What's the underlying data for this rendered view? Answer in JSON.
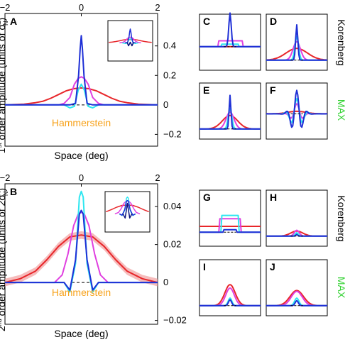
{
  "colors": {
    "red": "#e8262a",
    "magenta": "#e040e0",
    "cyan": "#2ee6f0",
    "blue": "#1e2fd6",
    "navy": "#0a1480",
    "black": "#000000",
    "orange": "#f7a21b",
    "green": "#2fd12f",
    "redband": "#f2a0a0"
  },
  "labels": {
    "hammerstein": "Hammerstein",
    "korenberg": "Korenberg",
    "max": "MAX",
    "space_label": "Space (deg)"
  },
  "chart_data": [
    {
      "panel": "A",
      "type": "line",
      "ylabel_parts": [
        "1",
        "st",
        " order amplitude (units of σ",
        "2",
        "N",
        ")"
      ],
      "xlabel": "Space (deg)",
      "xlim": [
        -2,
        2
      ],
      "xticks": [
        "−2",
        "0",
        "2"
      ],
      "ylim": [
        -0.28,
        0.62
      ],
      "yticks": [
        "0.4",
        "0.2",
        "0",
        "−0.2"
      ],
      "ytick_values": [
        0.4,
        0.2,
        0,
        -0.2
      ],
      "annotation": "Hammerstein",
      "series": [
        {
          "color": "red",
          "points": [
            [
              -2,
              0.0
            ],
            [
              -1.5,
              0.005
            ],
            [
              -1.2,
              0.015
            ],
            [
              -1.0,
              0.025
            ],
            [
              -0.8,
              0.045
            ],
            [
              -0.6,
              0.07
            ],
            [
              -0.4,
              0.095
            ],
            [
              -0.2,
              0.11
            ],
            [
              0,
              0.115
            ],
            [
              0.2,
              0.11
            ],
            [
              0.4,
              0.095
            ],
            [
              0.6,
              0.07
            ],
            [
              0.8,
              0.045
            ],
            [
              1.0,
              0.025
            ],
            [
              1.2,
              0.015
            ],
            [
              1.5,
              0.005
            ],
            [
              2,
              0.0
            ]
          ]
        },
        {
          "color": "magenta",
          "points": [
            [
              -2,
              0.0
            ],
            [
              -0.6,
              0.0
            ],
            [
              -0.45,
              0.01
            ],
            [
              -0.3,
              0.05
            ],
            [
              -0.18,
              0.14
            ],
            [
              -0.08,
              0.18
            ],
            [
              0,
              0.19
            ],
            [
              0.08,
              0.18
            ],
            [
              0.18,
              0.14
            ],
            [
              0.3,
              0.05
            ],
            [
              0.45,
              0.01
            ],
            [
              0.6,
              0.0
            ],
            [
              2,
              0.0
            ]
          ]
        },
        {
          "color": "cyan",
          "points": [
            [
              -2,
              0.0
            ],
            [
              -0.45,
              0.0
            ],
            [
              -0.3,
              -0.02
            ],
            [
              -0.18,
              -0.01
            ],
            [
              -0.08,
              0.1
            ],
            [
              0,
              0.14
            ],
            [
              0.08,
              0.1
            ],
            [
              0.18,
              -0.01
            ],
            [
              0.3,
              -0.02
            ],
            [
              0.45,
              0.0
            ],
            [
              2,
              0.0
            ]
          ]
        },
        {
          "color": "blue",
          "points": [
            [
              -2,
              0.0
            ],
            [
              -0.3,
              0.0
            ],
            [
              -0.15,
              0.01
            ],
            [
              -0.07,
              0.2
            ],
            [
              -0.03,
              0.38
            ],
            [
              0,
              0.47
            ],
            [
              0.03,
              0.38
            ],
            [
              0.07,
              0.2
            ],
            [
              0.15,
              0.01
            ],
            [
              0.3,
              0.0
            ],
            [
              2,
              0.0
            ]
          ]
        }
      ]
    },
    {
      "panel": "B",
      "type": "line",
      "ylabel_parts": [
        "2",
        "nd",
        " order amplitude (units of 2σ",
        "4",
        "N",
        ")"
      ],
      "xlabel": "Space (deg)",
      "xlim": [
        -2,
        2
      ],
      "xticks": [
        "−2",
        "0",
        "2"
      ],
      "ylim": [
        -0.022,
        0.052
      ],
      "yticks": [
        "0.04",
        "0.02",
        "0",
        "−0.02"
      ],
      "ytick_values": [
        0.04,
        0.02,
        0,
        -0.02
      ],
      "annotation": "Hammerstein",
      "series": [
        {
          "color": "red",
          "points": [
            [
              -2,
              0.0
            ],
            [
              -1.6,
              0.002
            ],
            [
              -1.2,
              0.006
            ],
            [
              -0.9,
              0.012
            ],
            [
              -0.6,
              0.019
            ],
            [
              -0.3,
              0.024
            ],
            [
              0,
              0.025
            ],
            [
              0.3,
              0.024
            ],
            [
              0.6,
              0.019
            ],
            [
              0.9,
              0.012
            ],
            [
              1.2,
              0.006
            ],
            [
              1.6,
              0.002
            ],
            [
              2,
              0.0
            ]
          ]
        },
        {
          "color": "magenta",
          "points": [
            [
              -2,
              0.0
            ],
            [
              -0.7,
              0.0
            ],
            [
              -0.5,
              0.004
            ],
            [
              -0.35,
              0.015
            ],
            [
              -0.2,
              0.03
            ],
            [
              -0.08,
              0.036
            ],
            [
              0,
              0.037
            ],
            [
              0.08,
              0.036
            ],
            [
              0.2,
              0.03
            ],
            [
              0.35,
              0.015
            ],
            [
              0.5,
              0.004
            ],
            [
              0.7,
              0.0
            ],
            [
              2,
              0.0
            ]
          ]
        },
        {
          "color": "cyan",
          "points": [
            [
              -2,
              0.0
            ],
            [
              -0.45,
              0.0
            ],
            [
              -0.3,
              -0.005
            ],
            [
              -0.15,
              0.01
            ],
            [
              -0.05,
              0.045
            ],
            [
              0,
              0.048
            ],
            [
              0.05,
              0.045
            ],
            [
              0.15,
              0.01
            ],
            [
              0.3,
              -0.005
            ],
            [
              0.45,
              0.0
            ],
            [
              2,
              0.0
            ]
          ]
        },
        {
          "color": "blue",
          "points": [
            [
              -2,
              0.0
            ],
            [
              -0.45,
              0.0
            ],
            [
              -0.3,
              -0.004
            ],
            [
              -0.15,
              0.012
            ],
            [
              -0.05,
              0.036
            ],
            [
              0,
              0.038
            ],
            [
              0.05,
              0.036
            ],
            [
              0.15,
              0.012
            ],
            [
              0.3,
              -0.004
            ],
            [
              0.45,
              0.0
            ],
            [
              2,
              0.0
            ]
          ]
        }
      ]
    }
  ],
  "small_panels": [
    {
      "label": "C",
      "row": "top"
    },
    {
      "label": "D",
      "row": "top"
    },
    {
      "label": "E",
      "row": "top"
    },
    {
      "label": "F",
      "row": "top"
    },
    {
      "label": "G",
      "row": "bottom"
    },
    {
      "label": "H",
      "row": "bottom"
    },
    {
      "label": "I",
      "row": "bottom"
    },
    {
      "label": "J",
      "row": "bottom"
    }
  ]
}
